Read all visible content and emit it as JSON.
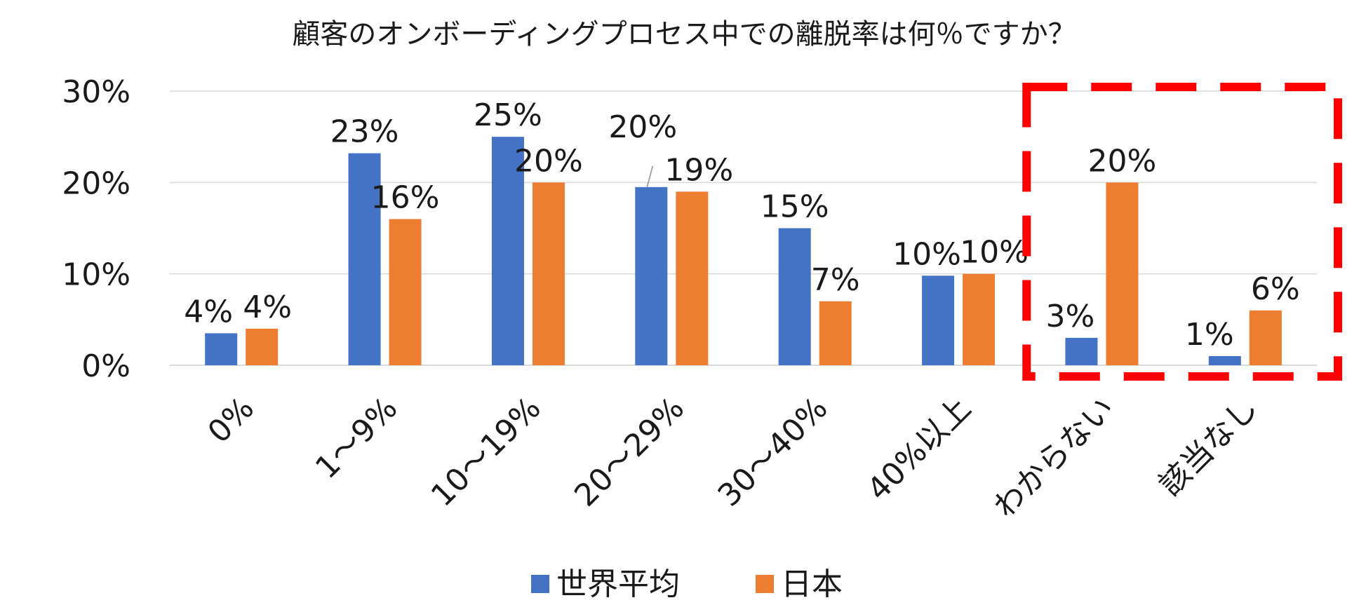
{
  "chart_data": {
    "type": "bar",
    "title": "顧客のオンボーディングプロセス中での離脱率は何％ですか？",
    "categories": [
      "0%",
      "1～9%",
      "10～19%",
      "20～29%",
      "30～40%",
      "40%以上",
      "わからない",
      "該当なし"
    ],
    "series": [
      {
        "name": "世界平均",
        "color": "#4472c4",
        "values": [
          3.5,
          23.2,
          25.0,
          19.5,
          15.0,
          9.8,
          3.0,
          1.0
        ],
        "labels": [
          "4%",
          "23%",
          "25%",
          "20%",
          "15%",
          "10%",
          "3%",
          "1%"
        ]
      },
      {
        "name": "日本",
        "color": "#ed7d31",
        "values": [
          4.0,
          16.0,
          20.0,
          19.0,
          7.0,
          10.0,
          20.0,
          6.0
        ],
        "labels": [
          "4%",
          "16%",
          "20%",
          "19%",
          "7%",
          "10%",
          "20%",
          "6%"
        ]
      }
    ],
    "yticks": [
      "0%",
      "10%",
      "20%",
      "30%"
    ],
    "ylim": [
      0,
      30
    ],
    "grid": true,
    "legend": "bottom",
    "highlight": {
      "categories": [
        "わからない",
        "該当なし"
      ],
      "color": "#ff0000",
      "style": "dashed-box"
    }
  }
}
